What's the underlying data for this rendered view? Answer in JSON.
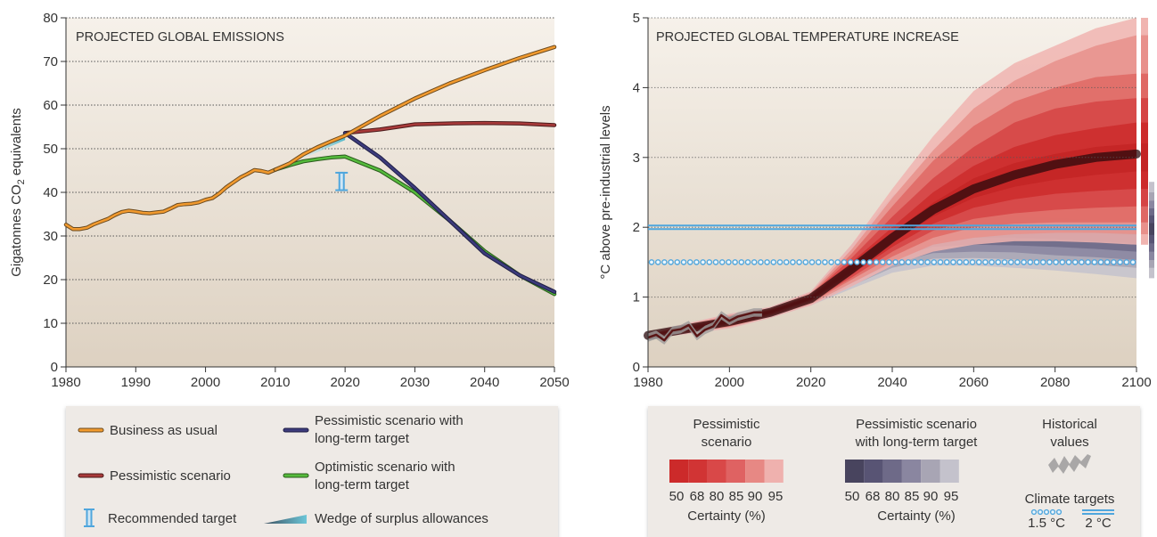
{
  "chart_data": [
    {
      "type": "line",
      "title": "PROJECTED GLOBAL EMISSIONS",
      "xlabel": "",
      "ylabel": "Gigatonnes CO2 equivalents",
      "ylabel_main": "Gigatonnes CO",
      "ylabel_sub": "2",
      "ylabel_tail": " equivalents",
      "xlim": [
        1980,
        2050
      ],
      "ylim": [
        0,
        80
      ],
      "xticks": [
        1980,
        1990,
        2000,
        2010,
        2020,
        2030,
        2040,
        2050
      ],
      "yticks": [
        0,
        10,
        20,
        30,
        40,
        50,
        60,
        70,
        80
      ],
      "grid": "horizontal dotted",
      "historical": {
        "x": [
          1980,
          1981,
          1982,
          1983,
          1984,
          1985,
          1986,
          1987,
          1988,
          1989,
          1990,
          1991,
          1992,
          1993,
          1994,
          1995,
          1996,
          1997,
          1998,
          1999,
          2000,
          2001,
          2002,
          2003,
          2004,
          2005,
          2006,
          2007,
          2008,
          2009,
          2010
        ],
        "y": [
          32.6,
          31.6,
          31.6,
          31.9,
          32.7,
          33.3,
          33.9,
          34.8,
          35.5,
          35.8,
          35.6,
          35.3,
          35.2,
          35.4,
          35.6,
          36.3,
          37.1,
          37.3,
          37.4,
          37.7,
          38.3,
          38.7,
          39.8,
          41.2,
          42.3,
          43.4,
          44.2,
          45.1,
          44.9,
          44.5,
          45.2
        ]
      },
      "series": [
        {
          "name": "Business as usual",
          "color": "#f29a2e",
          "x": [
            2010,
            2012,
            2014,
            2016,
            2018,
            2020,
            2025,
            2030,
            2035,
            2040,
            2045,
            2050
          ],
          "y": [
            45.2,
            46.6,
            48.7,
            50.3,
            51.7,
            53.0,
            57.5,
            61.5,
            65.0,
            68.0,
            70.8,
            73.3
          ]
        },
        {
          "name": "Pessimistic scenario",
          "color": "#a83a3a",
          "x": [
            2020,
            2025,
            2030,
            2035,
            2040,
            2045,
            2050
          ],
          "y": [
            53.6,
            54.4,
            55.6,
            55.8,
            55.9,
            55.8,
            55.4
          ]
        },
        {
          "name": "Pessimistic scenario with long-term target",
          "color": "#3c3b7c",
          "x": [
            2020,
            2025,
            2030,
            2035,
            2040,
            2045,
            2050
          ],
          "y": [
            53.6,
            48.0,
            41.0,
            33.5,
            26.0,
            21.0,
            17.2
          ]
        },
        {
          "name": "Optimistic scenario with long-term target",
          "color": "#55bb3c",
          "x": [
            2010,
            2012,
            2014,
            2016,
            2018,
            2020,
            2025,
            2030,
            2035,
            2040,
            2045,
            2050
          ],
          "y": [
            45.2,
            46.2,
            47.1,
            47.6,
            48.0,
            48.2,
            45.0,
            40.0,
            33.5,
            26.5,
            21.0,
            16.7
          ]
        }
      ],
      "recommended_target": {
        "x": 2019.5,
        "ymin": 40.5,
        "ymax": 44.5
      },
      "wedge": {
        "x0": 2012,
        "x1": 2020,
        "low": [
          46.4,
          52.0
        ],
        "high": [
          46.4,
          53.6
        ]
      },
      "legend": [
        {
          "label": "Business as usual",
          "kind": "line",
          "color": "#f29a2e"
        },
        {
          "label_lines": [
            "Pessimistic scenario with",
            "long-term target"
          ],
          "kind": "line",
          "color": "#3c3b7c"
        },
        {
          "label": "Pessimistic scenario",
          "kind": "line",
          "color": "#a83a3a"
        },
        {
          "label_lines": [
            "Optimistic scenario with",
            "long-term target"
          ],
          "kind": "line",
          "color": "#55bb3c"
        },
        {
          "label": "Recommended target",
          "kind": "ibar",
          "color": "#4fa6dd"
        },
        {
          "label": "Wedge of surplus allowances",
          "kind": "wedge",
          "color": "#4fb7c9"
        }
      ]
    },
    {
      "type": "area",
      "title": "PROJECTED GLOBAL TEMPERATURE INCREASE",
      "xlabel": "",
      "ylabel": "°C above pre-industrial levels",
      "xlim": [
        1980,
        2100
      ],
      "ylim": [
        0,
        5
      ],
      "xticks": [
        1980,
        2000,
        2020,
        2040,
        2060,
        2080,
        2100
      ],
      "yticks": [
        0,
        1,
        2,
        3,
        4,
        5
      ],
      "grid": "horizontal dotted",
      "historical": {
        "x": [
          1980,
          1982,
          1984,
          1986,
          1988,
          1990,
          1992,
          1994,
          1996,
          1998,
          2000,
          2002,
          2004,
          2006,
          2008
        ],
        "y": [
          0.42,
          0.46,
          0.38,
          0.52,
          0.54,
          0.6,
          0.44,
          0.53,
          0.58,
          0.74,
          0.66,
          0.72,
          0.75,
          0.78,
          0.78
        ]
      },
      "median": {
        "x": [
          1980,
          2000,
          2010,
          2020,
          2030,
          2040,
          2050,
          2060,
          2070,
          2080,
          2090,
          2100
        ],
        "y": [
          0.45,
          0.65,
          0.78,
          0.98,
          1.4,
          1.85,
          2.25,
          2.55,
          2.75,
          2.9,
          3.0,
          3.05
        ]
      },
      "pessimistic_bands": [
        {
          "certainty": 95,
          "color": "#f0b4b0",
          "lower": [
            0.4,
            0.55,
            0.7,
            0.88,
            1.15,
            1.45,
            1.65,
            1.75,
            1.8,
            1.8,
            1.78,
            1.75
          ],
          "upper": [
            0.5,
            0.76,
            0.86,
            1.08,
            1.75,
            2.55,
            3.3,
            3.95,
            4.35,
            4.6,
            4.85,
            5.0
          ]
        },
        {
          "certainty": 90,
          "color": "#e8908b",
          "lower": [
            0.41,
            0.57,
            0.72,
            0.9,
            1.2,
            1.5,
            1.75,
            1.85,
            1.9,
            1.92,
            1.92,
            1.9
          ],
          "upper": [
            0.49,
            0.74,
            0.84,
            1.06,
            1.68,
            2.42,
            3.1,
            3.7,
            4.1,
            4.38,
            4.6,
            4.75
          ]
        },
        {
          "certainty": 85,
          "color": "#df6864",
          "lower": [
            0.42,
            0.58,
            0.73,
            0.92,
            1.25,
            1.58,
            1.85,
            2.0,
            2.05,
            2.07,
            2.07,
            2.07
          ],
          "upper": [
            0.48,
            0.72,
            0.83,
            1.04,
            1.62,
            2.3,
            2.95,
            3.45,
            3.8,
            4.0,
            4.15,
            4.2
          ]
        },
        {
          "certainty": 80,
          "color": "#d54444",
          "lower": [
            0.43,
            0.6,
            0.74,
            0.94,
            1.28,
            1.65,
            1.95,
            2.12,
            2.2,
            2.25,
            2.28,
            2.3
          ],
          "upper": [
            0.47,
            0.71,
            0.82,
            1.03,
            1.56,
            2.15,
            2.7,
            3.15,
            3.5,
            3.7,
            3.8,
            3.85
          ]
        },
        {
          "certainty": 68,
          "color": "#cc2b2b",
          "lower": [
            0.44,
            0.62,
            0.76,
            0.96,
            1.32,
            1.72,
            2.05,
            2.28,
            2.4,
            2.48,
            2.52,
            2.55
          ],
          "upper": [
            0.46,
            0.69,
            0.81,
            1.01,
            1.5,
            2.0,
            2.5,
            2.88,
            3.15,
            3.32,
            3.42,
            3.5
          ]
        },
        {
          "certainty": 50,
          "color": "#c32424",
          "lower": [
            0.45,
            0.63,
            0.77,
            0.97,
            1.36,
            1.79,
            2.15,
            2.42,
            2.58,
            2.68,
            2.75,
            2.8
          ],
          "upper": [
            0.45,
            0.67,
            0.8,
            1.0,
            1.45,
            1.92,
            2.35,
            2.7,
            2.92,
            3.05,
            3.15,
            3.2
          ]
        }
      ],
      "long_term_bands": [
        {
          "certainty": 95,
          "color": "#c4c2cc",
          "lower": [
            0.4,
            0.55,
            0.7,
            0.88,
            1.12,
            1.35,
            1.45,
            1.45,
            1.42,
            1.38,
            1.33,
            1.27
          ],
          "upper": [
            0.5,
            0.76,
            0.86,
            1.08,
            1.75,
            2.45,
            2.82,
            2.9,
            2.85,
            2.78,
            2.72,
            2.65
          ]
        },
        {
          "certainty": 90,
          "color": "#a8a5b4",
          "lower": [
            0.41,
            0.57,
            0.72,
            0.9,
            1.16,
            1.42,
            1.55,
            1.56,
            1.54,
            1.5,
            1.46,
            1.42
          ],
          "upper": [
            0.49,
            0.74,
            0.84,
            1.06,
            1.68,
            2.32,
            2.65,
            2.72,
            2.68,
            2.62,
            2.55,
            2.5
          ]
        },
        {
          "certainty": 85,
          "color": "#8a86a0",
          "lower": [
            0.42,
            0.58,
            0.73,
            0.92,
            1.2,
            1.48,
            1.63,
            1.65,
            1.64,
            1.6,
            1.57,
            1.53
          ],
          "upper": [
            0.48,
            0.72,
            0.83,
            1.04,
            1.62,
            2.2,
            2.5,
            2.57,
            2.53,
            2.48,
            2.43,
            2.38
          ]
        },
        {
          "certainty": 80,
          "color": "#6e6a88",
          "lower": [
            0.43,
            0.6,
            0.74,
            0.94,
            1.24,
            1.55,
            1.72,
            1.75,
            1.74,
            1.72,
            1.69,
            1.65
          ],
          "upper": [
            0.47,
            0.71,
            0.82,
            1.03,
            1.56,
            2.1,
            2.38,
            2.43,
            2.4,
            2.36,
            2.32,
            2.27
          ]
        },
        {
          "certainty": 68,
          "color": "#585474",
          "lower": [
            0.44,
            0.62,
            0.76,
            0.96,
            1.28,
            1.62,
            1.82,
            1.85,
            1.85,
            1.83,
            1.8,
            1.77
          ],
          "upper": [
            0.46,
            0.69,
            0.81,
            1.01,
            1.5,
            1.98,
            2.25,
            2.3,
            2.28,
            2.25,
            2.21,
            2.17
          ]
        },
        {
          "certainty": 50,
          "color": "#48445e",
          "lower": [
            0.45,
            0.63,
            0.77,
            0.97,
            1.33,
            1.7,
            1.92,
            1.96,
            1.96,
            1.95,
            1.92,
            1.89
          ],
          "upper": [
            0.45,
            0.67,
            0.8,
            1.0,
            1.44,
            1.88,
            2.12,
            2.16,
            2.15,
            2.13,
            2.1,
            2.06
          ]
        }
      ],
      "band_x": [
        1980,
        2000,
        2010,
        2020,
        2030,
        2040,
        2050,
        2060,
        2070,
        2080,
        2090,
        2100
      ],
      "climate_targets": [
        {
          "label": "1.5 °C",
          "value": 1.5,
          "style": "dotted",
          "color": "#4fa6dd"
        },
        {
          "label": "2 °C",
          "value": 2.0,
          "style": "double",
          "color": "#4fa6dd"
        }
      ],
      "legend": {
        "pessimistic_title": [
          "Pessimistic",
          "scenario"
        ],
        "long_term_title": [
          "Pessimistic scenario",
          "with long-term target"
        ],
        "historical_title": [
          "Historical",
          "values"
        ],
        "climate_title": "Climate targets",
        "certainty_values": [
          "50",
          "68",
          "80",
          "85",
          "90",
          "95"
        ],
        "certainty_label": "Certainty (%)",
        "pessimistic_swatches": [
          "#cc2a2a",
          "#d13434",
          "#d94848",
          "#df6262",
          "#e78884",
          "#efb1ae"
        ],
        "long_term_swatches": [
          "#48445e",
          "#585474",
          "#6e6a88",
          "#8a86a0",
          "#a8a5b4",
          "#c4c2cc"
        ]
      }
    }
  ]
}
